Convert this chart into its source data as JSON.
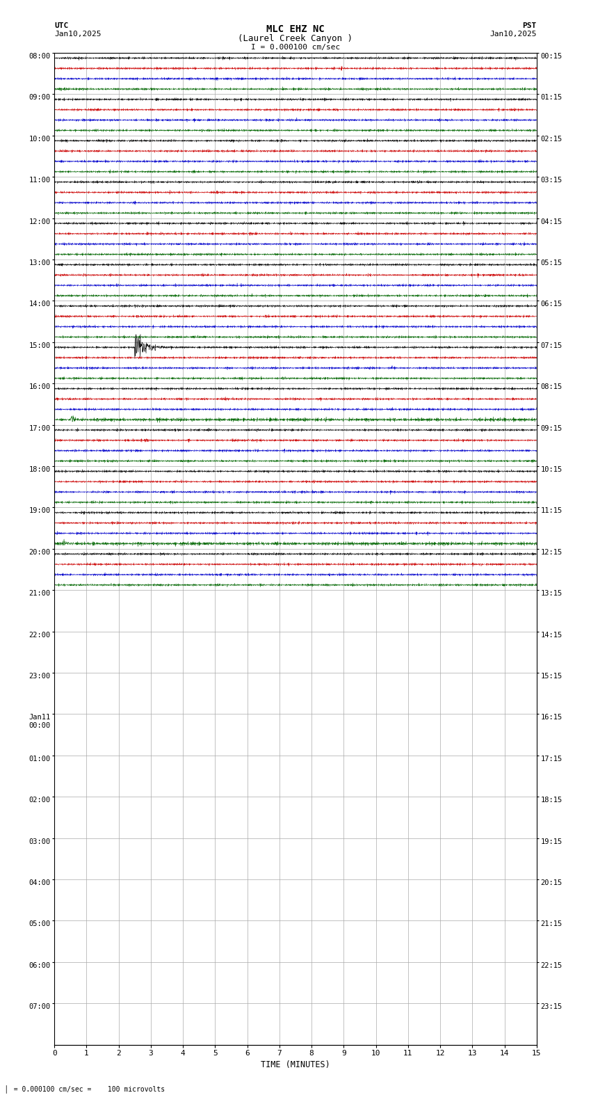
{
  "title_line1": "MLC EHZ NC",
  "title_line2": "(Laurel Creek Canyon )",
  "scale_bar_label": "I = 0.000100 cm/sec",
  "utc_label": "UTC",
  "utc_date": "Jan10,2025",
  "pst_label": "PST",
  "pst_date": "Jan10,2025",
  "xlabel": "TIME (MINUTES)",
  "footer_text": "= 0.000100 cm/sec =    100 microvolts",
  "bg_color": "#ffffff",
  "trace_colors": [
    "#000000",
    "#cc0000",
    "#0000cc",
    "#006600"
  ],
  "grid_color": "#aaaaaa",
  "n_hours_total": 32,
  "n_hours_with_data": 13,
  "n_traces": 4,
  "minutes_per_row": 15,
  "left_labels_utc": [
    "08:00",
    "09:00",
    "10:00",
    "11:00",
    "12:00",
    "13:00",
    "14:00",
    "15:00",
    "16:00",
    "17:00",
    "18:00",
    "19:00",
    "20:00",
    "21:00",
    "22:00",
    "23:00",
    "Jan11\n00:00",
    "01:00",
    "02:00",
    "03:00",
    "04:00",
    "05:00",
    "06:00",
    "07:00"
  ],
  "right_labels_pst": [
    "00:15",
    "01:15",
    "02:15",
    "03:15",
    "04:15",
    "05:15",
    "06:15",
    "07:15",
    "08:15",
    "09:15",
    "10:15",
    "11:15",
    "12:15",
    "13:15",
    "14:15",
    "15:15",
    "16:15",
    "17:15",
    "18:15",
    "19:15",
    "20:15",
    "21:15",
    "22:15",
    "23:15"
  ],
  "figsize": [
    8.5,
    15.84
  ],
  "dpi": 100
}
